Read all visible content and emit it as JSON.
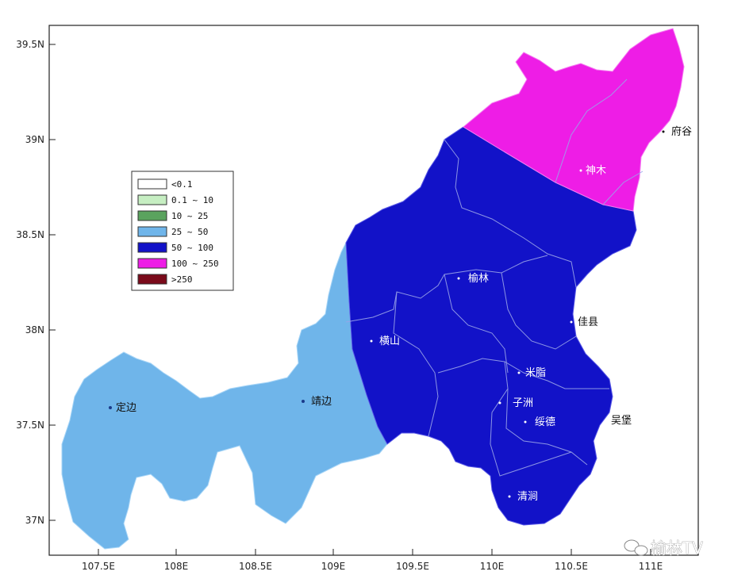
{
  "map": {
    "x_ticks": [
      "107.5E",
      "108E",
      "108.5E",
      "109E",
      "109.5E",
      "110E",
      "110.5E",
      "111E"
    ],
    "y_ticks": [
      "39.5N",
      "39N",
      "38.5N",
      "38N",
      "37.5N",
      "37N"
    ],
    "legend": [
      {
        "label": "<0.1",
        "color": "#ffffff"
      },
      {
        "label": "0.1 ~ 10",
        "color": "#c6eec2"
      },
      {
        "label": "10 ~ 25",
        "color": "#5aa35e"
      },
      {
        "label": "25 ~ 50",
        "color": "#6fb5ea"
      },
      {
        "label": "50 ~ 100",
        "color": "#1212c8"
      },
      {
        "label": "100 ~ 250",
        "color": "#ee1de6"
      },
      {
        "label": ">250",
        "color": "#7a0a1a"
      }
    ],
    "places": {
      "fugu": "府谷",
      "shenmu": "神木",
      "yuyang": "榆林",
      "jiaxian": "佳县",
      "hengshan": "横山",
      "mizhi": "米脂",
      "suide": "绥德",
      "wubu": "吴堡",
      "zizhou": "子洲",
      "qingjian": "清涧",
      "jingbian": "靖边",
      "dingbian": "定边"
    },
    "watermark": "榆林TV",
    "region_colors": {
      "west": "#6fb5ea",
      "central": "#1212c8",
      "north": "#ee1de6"
    }
  }
}
